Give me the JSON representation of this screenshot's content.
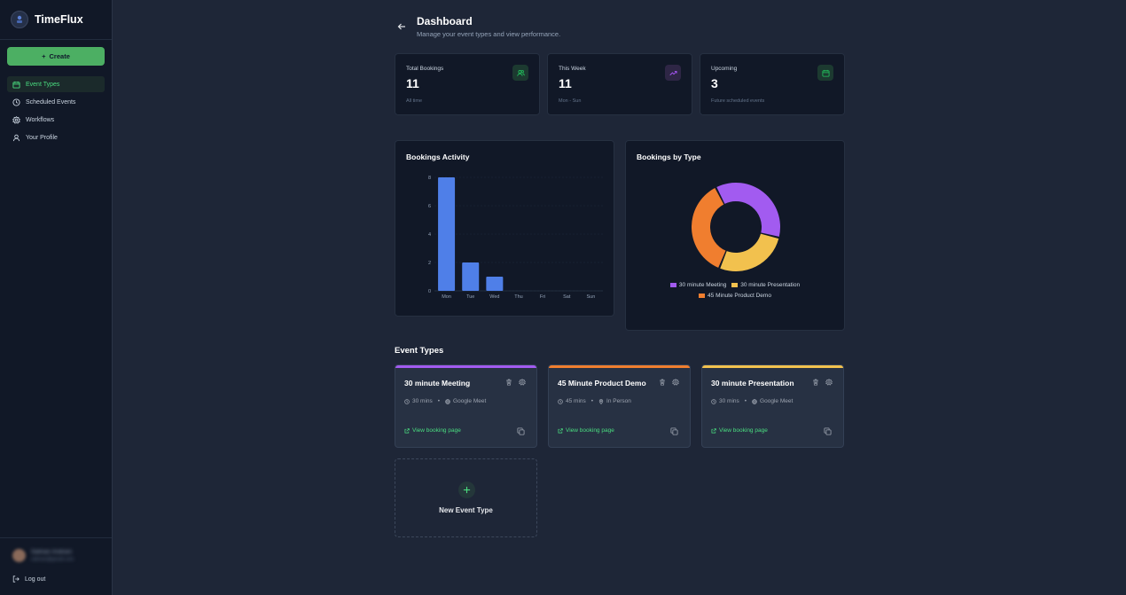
{
  "app": {
    "name": "TimeFlux"
  },
  "sidebar": {
    "create_label": "Create",
    "items": [
      {
        "label": "Event Types",
        "icon": "calendar-icon",
        "active": true
      },
      {
        "label": "Scheduled Events",
        "icon": "clock-icon",
        "active": false
      },
      {
        "label": "Workflows",
        "icon": "gear-icon",
        "active": false
      },
      {
        "label": "Your Profile",
        "icon": "user-icon",
        "active": false
      }
    ],
    "user": {
      "name": "Salman Andrani",
      "email": "salman@gmail.com"
    },
    "logout_label": "Log out"
  },
  "header": {
    "title": "Dashboard",
    "subtitle": "Manage your event types and view performance."
  },
  "stats": [
    {
      "label": "Total Bookings",
      "value": "11",
      "sub": "All time",
      "icon": "users-icon",
      "color": "#22c55e"
    },
    {
      "label": "This Week",
      "value": "11",
      "sub": "Mon - Sun",
      "icon": "trending-up-icon",
      "color": "#a855f7"
    },
    {
      "label": "Upcoming",
      "value": "3",
      "sub": "Future scheduled events",
      "icon": "calendar-icon",
      "color": "#22c55e"
    }
  ],
  "panels": {
    "activity_title": "Bookings Activity",
    "types_title": "Bookings by Type"
  },
  "chart_data": [
    {
      "type": "bar",
      "title": "Bookings Activity",
      "categories": [
        "Mon",
        "Tue",
        "Wed",
        "Thu",
        "Fri",
        "Sat",
        "Sun"
      ],
      "values": [
        8,
        2,
        1,
        0,
        0,
        0,
        0
      ],
      "ylim": [
        0,
        8
      ],
      "yticks": [
        0,
        2,
        4,
        6,
        8
      ],
      "grid": true,
      "color": "#4f7fe8"
    },
    {
      "type": "pie",
      "title": "Bookings by Type",
      "donut": true,
      "labels": [
        "30 minute Meeting",
        "30 minute Presentation",
        "45 Minute Product Demo"
      ],
      "values": [
        4,
        3,
        4
      ],
      "colors": [
        "#a25bf0",
        "#f2c14e",
        "#f07e2f"
      ],
      "legend": "bottom"
    }
  ],
  "event_section_title": "Event Types",
  "event_types": [
    {
      "title": "30 minute Meeting",
      "duration": "30 mins",
      "location": "Google Meet",
      "location_icon": "globe-icon",
      "color": "#a25bf0",
      "link": "View booking page"
    },
    {
      "title": "45 Minute Product Demo",
      "duration": "45 mins",
      "location": "In Person",
      "location_icon": "map-pin-icon",
      "color": "#f07e2f",
      "link": "View booking page"
    },
    {
      "title": "30 minute Presentation",
      "duration": "30 mins",
      "location": "Google Meet",
      "location_icon": "globe-icon",
      "color": "#f2c14e",
      "link": "View booking page"
    }
  ],
  "new_event_label": "New Event Type"
}
